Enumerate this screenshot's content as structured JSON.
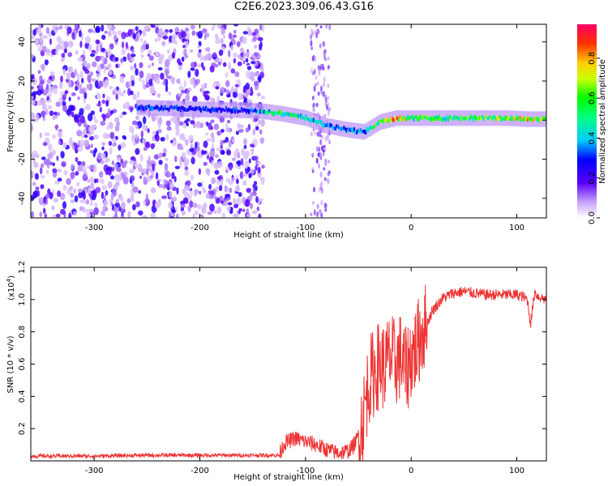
{
  "title": "C2E6.2023.309.06.43.G16",
  "chart_data": [
    {
      "type": "heatmap",
      "xlabel": "Height of straight line (km)",
      "ylabel": "Frequency (Hz)",
      "xlim": [
        -360,
        128
      ],
      "ylim": [
        -50,
        49
      ],
      "xticks": [
        -300,
        -200,
        -100,
        0,
        100
      ],
      "yticks": [
        -40,
        -20,
        0,
        20,
        40
      ],
      "colorbar": {
        "label": "Normalized spectral amplitude",
        "range": [
          0.0,
          0.97
        ],
        "ticks": [
          "0.0",
          "0.2",
          "0.4",
          "0.6",
          "0.8"
        ],
        "colormap": "rainbow"
      },
      "signal_track": [
        {
          "x": -260,
          "freq": 6.5,
          "amp": 0.32
        },
        {
          "x": -230,
          "freq": 6.0,
          "amp": 0.3
        },
        {
          "x": -200,
          "freq": 5.5,
          "amp": 0.28
        },
        {
          "x": -160,
          "freq": 5.0,
          "amp": 0.3
        },
        {
          "x": -140,
          "freq": 4.5,
          "amp": 0.45
        },
        {
          "x": -120,
          "freq": 3.0,
          "amp": 0.55
        },
        {
          "x": -100,
          "freq": 1.0,
          "amp": 0.5
        },
        {
          "x": -80,
          "freq": -3.0,
          "amp": 0.35
        },
        {
          "x": -60,
          "freq": -5.0,
          "amp": 0.35
        },
        {
          "x": -45,
          "freq": -6.0,
          "amp": 0.4
        },
        {
          "x": -30,
          "freq": -1.0,
          "amp": 0.6
        },
        {
          "x": -15,
          "freq": 1.0,
          "amp": 0.85
        },
        {
          "x": 0,
          "freq": 1.0,
          "amp": 0.55
        },
        {
          "x": 30,
          "freq": 1.0,
          "amp": 0.55
        },
        {
          "x": 60,
          "freq": 1.0,
          "amp": 0.6
        },
        {
          "x": 90,
          "freq": 1.0,
          "amp": 0.65
        },
        {
          "x": 110,
          "freq": 0.5,
          "amp": 0.8
        },
        {
          "x": 128,
          "freq": 0.5,
          "amp": 0.55
        }
      ]
    },
    {
      "type": "line",
      "xlabel": "Height of straight line (km)",
      "ylabel": "SNR (10 * v/v)",
      "y_multiplier": "(x10",
      "y_multiplier_exp": "4",
      "y_multiplier_close": ")",
      "xlim": [
        -360,
        128
      ],
      "ylim": [
        0,
        12000
      ],
      "xticks": [
        -300,
        -200,
        -100,
        0,
        100
      ],
      "yticks": [
        "0.2",
        "0.4",
        "0.6",
        "0.8",
        "1.0",
        "1.2"
      ],
      "color": "#ee3333",
      "series": [
        {
          "x": [
            -360,
            -300,
            -250,
            -200,
            -150,
            -125,
            -120,
            -110,
            -100,
            -90,
            -80,
            -70,
            -60,
            -55,
            -50,
            -45,
            -40,
            -35,
            -30,
            -25,
            -20,
            -15,
            -10,
            -5,
            0,
            5,
            10,
            15,
            20,
            25,
            30,
            40,
            50,
            60,
            70,
            80,
            90,
            100,
            105,
            110,
            113,
            115,
            117,
            120,
            128
          ],
          "y": [
            300,
            300,
            350,
            350,
            350,
            350,
            1100,
            1400,
            1200,
            1000,
            700,
            500,
            600,
            900,
            1500,
            2800,
            5000,
            5500,
            6000,
            5800,
            6500,
            6000,
            6500,
            5500,
            6500,
            7000,
            8000,
            8500,
            9300,
            9700,
            10100,
            10400,
            10500,
            10400,
            10300,
            10300,
            10300,
            10300,
            10200,
            10000,
            8500,
            9500,
            10500,
            10200,
            10000
          ]
        }
      ]
    }
  ]
}
